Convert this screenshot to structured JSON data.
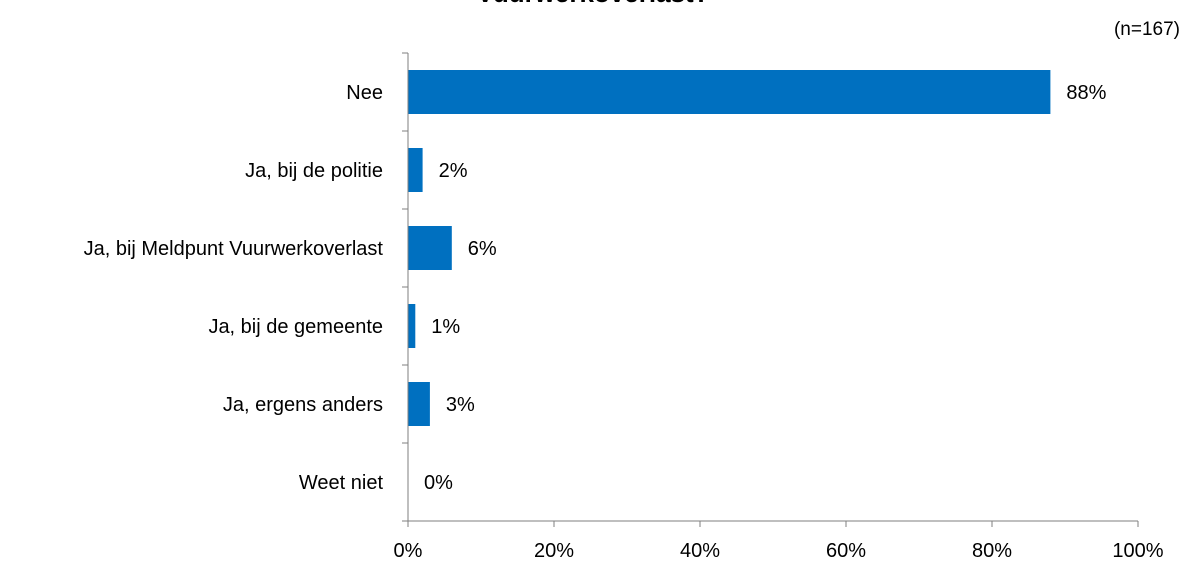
{
  "chart_data": {
    "type": "bar",
    "orientation": "horizontal",
    "title": "Vuurwerkoverlast?",
    "note": "(n=167)",
    "categories": [
      "Nee",
      "Ja, bij de politie",
      "Ja, bij Meldpunt Vuurwerkoverlast",
      "Ja, bij de gemeente",
      "Ja, ergens anders",
      "Weet niet"
    ],
    "values": [
      88,
      2,
      6,
      1,
      3,
      0
    ],
    "value_labels": [
      "88%",
      "2%",
      "6%",
      "1%",
      "3%",
      "0%"
    ],
    "xlim": [
      0,
      100
    ],
    "x_ticks": [
      0,
      20,
      40,
      60,
      80,
      100
    ],
    "x_tick_labels": [
      "0%",
      "20%",
      "40%",
      "60%",
      "80%",
      "100%"
    ],
    "xlabel": "",
    "ylabel": "",
    "grid": false,
    "legend": "none",
    "colors": {
      "bar": "#0070C0",
      "axis": "#7f7f7f"
    }
  }
}
